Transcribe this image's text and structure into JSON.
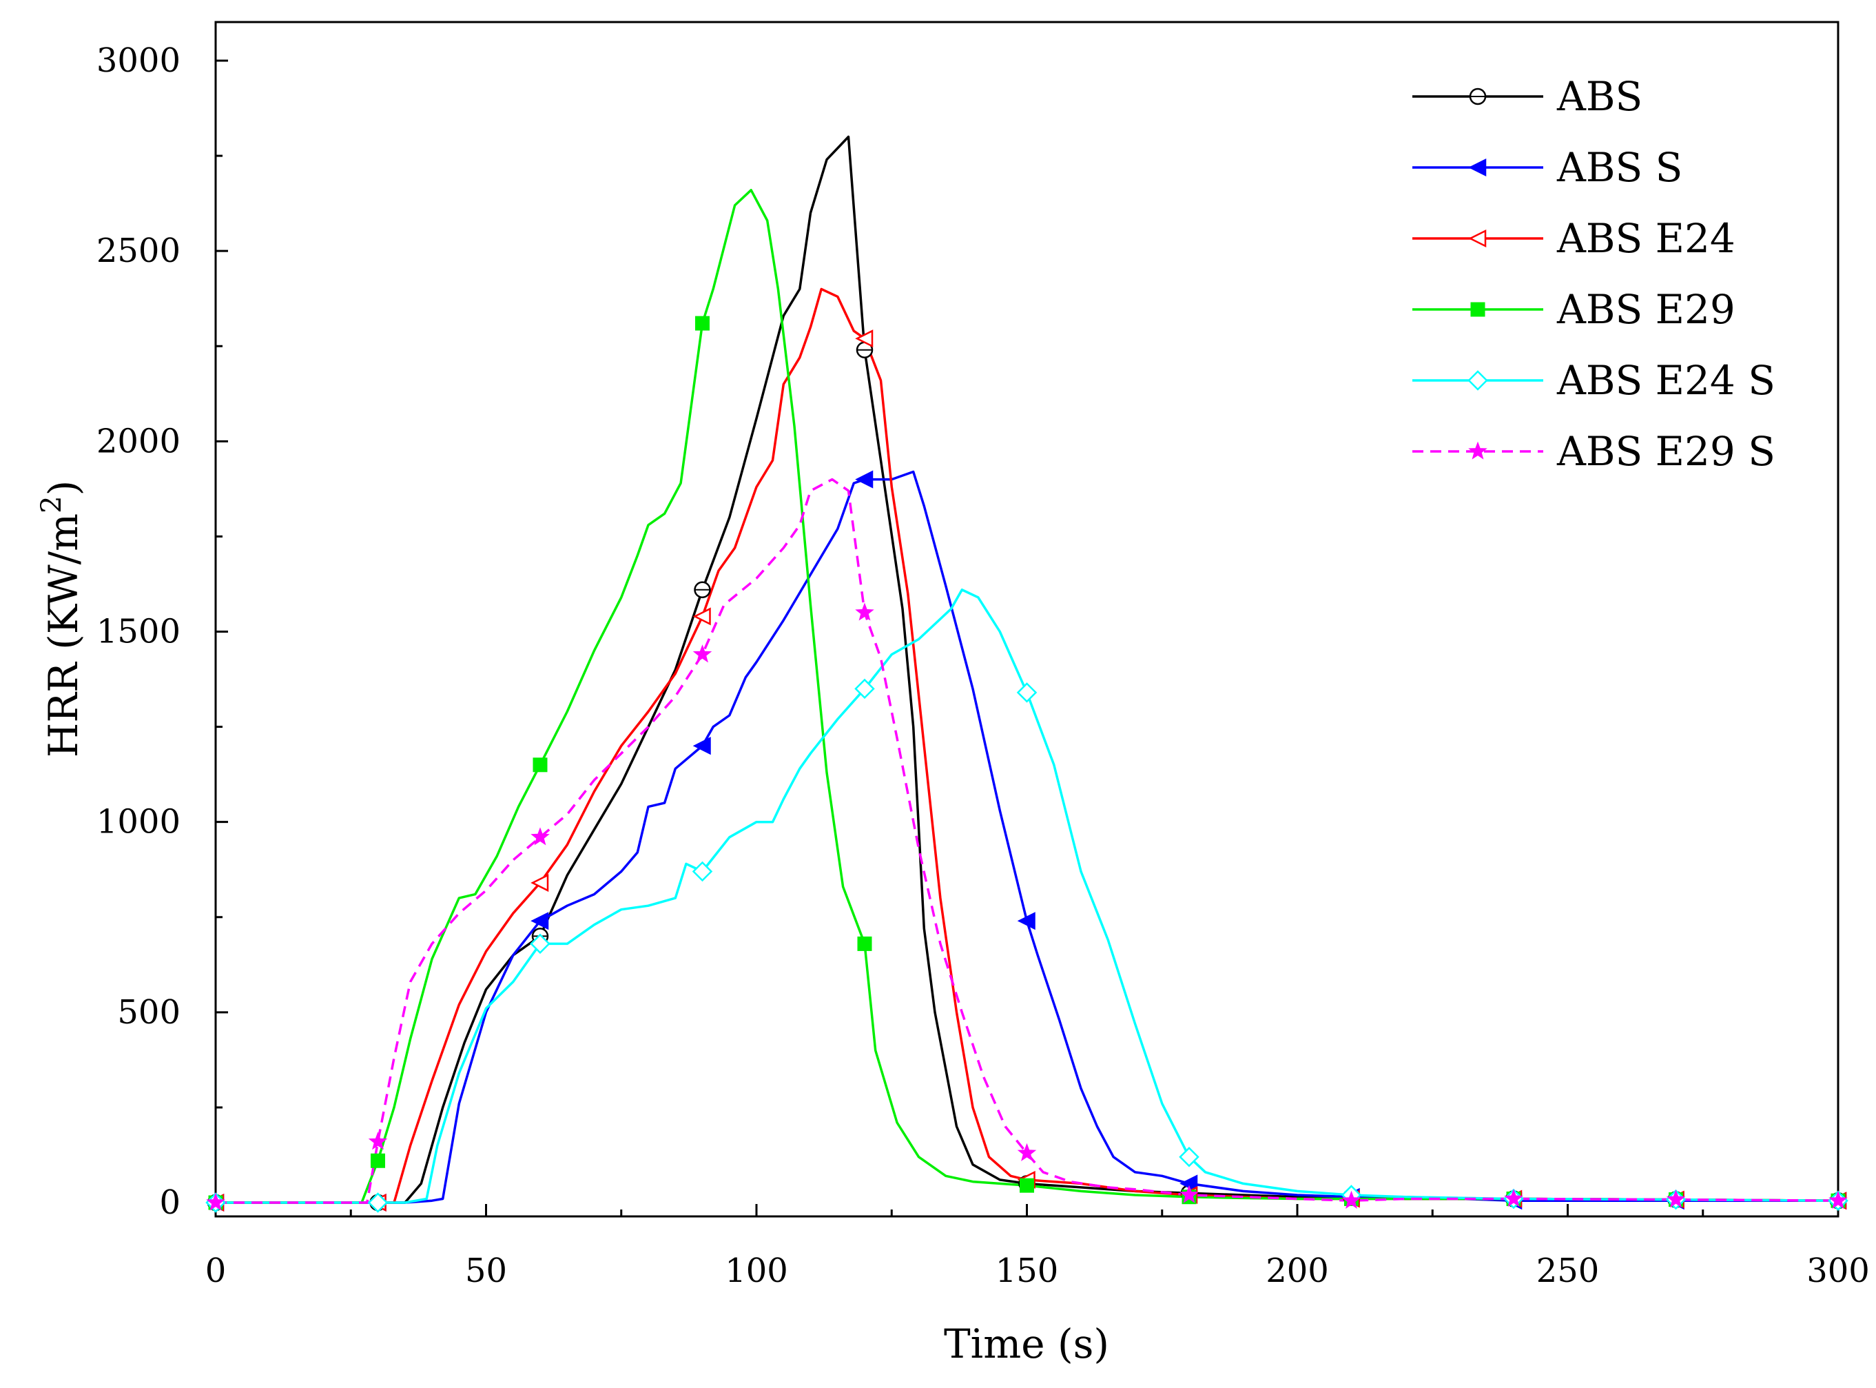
{
  "chart_data": {
    "type": "line",
    "xlabel": "Time (s)",
    "ylabel": "HRR (KW/m2)",
    "ylabel_base": "HRR (KW/m",
    "ylabel_sup": "2",
    "ylabel_close": ")",
    "xlim": [
      0,
      300
    ],
    "ylim": [
      0,
      3000
    ],
    "xticks": [
      0,
      50,
      100,
      150,
      200,
      250,
      300
    ],
    "yticks": [
      0,
      500,
      1000,
      1500,
      2000,
      2500,
      3000
    ],
    "x_tick_labels": [
      "0",
      "50",
      "100",
      "150",
      "200",
      "250",
      "300"
    ],
    "y_tick_labels": [
      "0",
      "500",
      "1000",
      "1500",
      "2000",
      "2500",
      "3000"
    ],
    "grid": false,
    "legend_position": "top-right",
    "series": [
      {
        "name": "ABS",
        "color": "#000000",
        "marker": "open-circle",
        "dash": false,
        "points": [
          [
            0,
            0
          ],
          [
            10,
            0
          ],
          [
            20,
            0
          ],
          [
            30,
            0
          ],
          [
            35,
            0
          ],
          [
            38,
            50
          ],
          [
            42,
            250
          ],
          [
            46,
            420
          ],
          [
            50,
            560
          ],
          [
            55,
            650
          ],
          [
            60,
            700
          ],
          [
            65,
            860
          ],
          [
            70,
            980
          ],
          [
            75,
            1100
          ],
          [
            80,
            1250
          ],
          [
            85,
            1400
          ],
          [
            90,
            1610
          ],
          [
            95,
            1800
          ],
          [
            100,
            2060
          ],
          [
            105,
            2330
          ],
          [
            108,
            2400
          ],
          [
            110,
            2600
          ],
          [
            113,
            2740
          ],
          [
            117,
            2800
          ],
          [
            120,
            2240
          ],
          [
            123,
            1950
          ],
          [
            127,
            1560
          ],
          [
            129,
            1250
          ],
          [
            131,
            720
          ],
          [
            133,
            500
          ],
          [
            135,
            350
          ],
          [
            137,
            200
          ],
          [
            140,
            100
          ],
          [
            145,
            60
          ],
          [
            150,
            50
          ],
          [
            160,
            40
          ],
          [
            170,
            30
          ],
          [
            180,
            25
          ],
          [
            190,
            20
          ],
          [
            200,
            15
          ],
          [
            210,
            15
          ],
          [
            220,
            10
          ],
          [
            240,
            10
          ],
          [
            270,
            8
          ],
          [
            300,
            5
          ]
        ],
        "markers_x": [
          0,
          30,
          60,
          90,
          120,
          150,
          180,
          210,
          240,
          270,
          300
        ]
      },
      {
        "name": "ABS S",
        "color": "#0000ff",
        "marker": "filled-left-triangle",
        "dash": false,
        "points": [
          [
            0,
            0
          ],
          [
            10,
            0
          ],
          [
            20,
            0
          ],
          [
            30,
            0
          ],
          [
            35,
            0
          ],
          [
            40,
            5
          ],
          [
            42,
            10
          ],
          [
            45,
            260
          ],
          [
            50,
            500
          ],
          [
            55,
            650
          ],
          [
            60,
            740
          ],
          [
            65,
            780
          ],
          [
            70,
            810
          ],
          [
            75,
            870
          ],
          [
            78,
            920
          ],
          [
            80,
            1040
          ],
          [
            83,
            1050
          ],
          [
            85,
            1140
          ],
          [
            90,
            1200
          ],
          [
            92,
            1250
          ],
          [
            95,
            1280
          ],
          [
            98,
            1380
          ],
          [
            100,
            1420
          ],
          [
            105,
            1530
          ],
          [
            110,
            1650
          ],
          [
            115,
            1770
          ],
          [
            118,
            1890
          ],
          [
            120,
            1900
          ],
          [
            125,
            1900
          ],
          [
            129,
            1920
          ],
          [
            131,
            1830
          ],
          [
            135,
            1620
          ],
          [
            140,
            1350
          ],
          [
            145,
            1030
          ],
          [
            150,
            740
          ],
          [
            152,
            650
          ],
          [
            156,
            480
          ],
          [
            160,
            300
          ],
          [
            163,
            200
          ],
          [
            166,
            120
          ],
          [
            170,
            80
          ],
          [
            175,
            70
          ],
          [
            180,
            50
          ],
          [
            190,
            30
          ],
          [
            200,
            20
          ],
          [
            210,
            15
          ],
          [
            220,
            15
          ],
          [
            240,
            5
          ],
          [
            270,
            5
          ],
          [
            300,
            5
          ]
        ],
        "markers_x": [
          0,
          30,
          60,
          90,
          120,
          150,
          180,
          210,
          240,
          270,
          300
        ]
      },
      {
        "name": "ABS E24",
        "color": "#ff0000",
        "marker": "open-left-triangle",
        "dash": false,
        "points": [
          [
            0,
            0
          ],
          [
            10,
            0
          ],
          [
            20,
            0
          ],
          [
            30,
            0
          ],
          [
            33,
            0
          ],
          [
            36,
            150
          ],
          [
            40,
            320
          ],
          [
            45,
            520
          ],
          [
            50,
            660
          ],
          [
            55,
            760
          ],
          [
            60,
            840
          ],
          [
            65,
            940
          ],
          [
            70,
            1080
          ],
          [
            75,
            1200
          ],
          [
            80,
            1290
          ],
          [
            85,
            1390
          ],
          [
            90,
            1540
          ],
          [
            93,
            1660
          ],
          [
            96,
            1720
          ],
          [
            100,
            1880
          ],
          [
            103,
            1950
          ],
          [
            105,
            2150
          ],
          [
            108,
            2220
          ],
          [
            110,
            2300
          ],
          [
            112,
            2400
          ],
          [
            115,
            2380
          ],
          [
            118,
            2290
          ],
          [
            120,
            2270
          ],
          [
            123,
            2160
          ],
          [
            125,
            1880
          ],
          [
            128,
            1600
          ],
          [
            131,
            1200
          ],
          [
            134,
            800
          ],
          [
            137,
            500
          ],
          [
            140,
            250
          ],
          [
            143,
            120
          ],
          [
            147,
            70
          ],
          [
            150,
            60
          ],
          [
            160,
            50
          ],
          [
            170,
            30
          ],
          [
            180,
            20
          ],
          [
            190,
            15
          ],
          [
            200,
            10
          ],
          [
            210,
            10
          ],
          [
            220,
            10
          ],
          [
            240,
            10
          ],
          [
            270,
            8
          ],
          [
            300,
            5
          ]
        ],
        "markers_x": [
          0,
          30,
          60,
          90,
          120,
          150,
          180,
          210,
          240,
          270,
          300
        ]
      },
      {
        "name": "ABS E29",
        "color": "#00ee00",
        "marker": "filled-square",
        "dash": false,
        "points": [
          [
            0,
            0
          ],
          [
            10,
            0
          ],
          [
            20,
            0
          ],
          [
            27,
            0
          ],
          [
            30,
            110
          ],
          [
            33,
            250
          ],
          [
            36,
            430
          ],
          [
            40,
            640
          ],
          [
            45,
            800
          ],
          [
            48,
            810
          ],
          [
            52,
            910
          ],
          [
            56,
            1040
          ],
          [
            60,
            1150
          ],
          [
            65,
            1290
          ],
          [
            70,
            1450
          ],
          [
            75,
            1590
          ],
          [
            78,
            1700
          ],
          [
            80,
            1780
          ],
          [
            83,
            1810
          ],
          [
            86,
            1890
          ],
          [
            90,
            2310
          ],
          [
            92,
            2400
          ],
          [
            96,
            2620
          ],
          [
            99,
            2660
          ],
          [
            102,
            2580
          ],
          [
            104,
            2400
          ],
          [
            107,
            2040
          ],
          [
            110,
            1570
          ],
          [
            113,
            1130
          ],
          [
            116,
            830
          ],
          [
            120,
            680
          ],
          [
            122,
            400
          ],
          [
            126,
            210
          ],
          [
            130,
            120
          ],
          [
            135,
            70
          ],
          [
            140,
            55
          ],
          [
            145,
            50
          ],
          [
            150,
            45
          ],
          [
            160,
            30
          ],
          [
            170,
            20
          ],
          [
            180,
            15
          ],
          [
            190,
            12
          ],
          [
            200,
            10
          ],
          [
            210,
            10
          ],
          [
            220,
            10
          ],
          [
            240,
            10
          ],
          [
            270,
            8
          ],
          [
            300,
            5
          ]
        ],
        "markers_x": [
          0,
          30,
          60,
          90,
          120,
          150,
          180,
          210,
          240,
          270,
          300
        ]
      },
      {
        "name": "ABS E24 S",
        "color": "#00ffff",
        "marker": "open-diamond",
        "dash": false,
        "points": [
          [
            0,
            0
          ],
          [
            10,
            0
          ],
          [
            20,
            0
          ],
          [
            30,
            0
          ],
          [
            35,
            0
          ],
          [
            39,
            10
          ],
          [
            41,
            150
          ],
          [
            45,
            340
          ],
          [
            50,
            510
          ],
          [
            55,
            580
          ],
          [
            60,
            680
          ],
          [
            65,
            680
          ],
          [
            70,
            730
          ],
          [
            75,
            770
          ],
          [
            80,
            780
          ],
          [
            85,
            800
          ],
          [
            87,
            890
          ],
          [
            90,
            870
          ],
          [
            95,
            960
          ],
          [
            100,
            1000
          ],
          [
            103,
            1000
          ],
          [
            105,
            1060
          ],
          [
            108,
            1140
          ],
          [
            110,
            1180
          ],
          [
            115,
            1270
          ],
          [
            120,
            1350
          ],
          [
            125,
            1440
          ],
          [
            130,
            1480
          ],
          [
            133,
            1520
          ],
          [
            136,
            1560
          ],
          [
            138,
            1610
          ],
          [
            141,
            1590
          ],
          [
            145,
            1500
          ],
          [
            150,
            1340
          ],
          [
            155,
            1150
          ],
          [
            160,
            870
          ],
          [
            165,
            690
          ],
          [
            170,
            470
          ],
          [
            175,
            260
          ],
          [
            180,
            120
          ],
          [
            183,
            80
          ],
          [
            190,
            50
          ],
          [
            200,
            30
          ],
          [
            210,
            20
          ],
          [
            220,
            15
          ],
          [
            240,
            10
          ],
          [
            270,
            8
          ],
          [
            300,
            5
          ]
        ],
        "markers_x": [
          0,
          30,
          60,
          90,
          120,
          150,
          180,
          210,
          240,
          270,
          300
        ]
      },
      {
        "name": "ABS E29 S",
        "color": "#ff00ff",
        "marker": "filled-star",
        "dash": true,
        "points": [
          [
            0,
            0
          ],
          [
            10,
            0
          ],
          [
            20,
            0
          ],
          [
            28,
            0
          ],
          [
            30,
            160
          ],
          [
            33,
            380
          ],
          [
            36,
            580
          ],
          [
            40,
            680
          ],
          [
            45,
            760
          ],
          [
            50,
            820
          ],
          [
            55,
            900
          ],
          [
            60,
            960
          ],
          [
            65,
            1020
          ],
          [
            70,
            1110
          ],
          [
            75,
            1180
          ],
          [
            80,
            1250
          ],
          [
            85,
            1330
          ],
          [
            90,
            1440
          ],
          [
            94,
            1570
          ],
          [
            100,
            1640
          ],
          [
            105,
            1720
          ],
          [
            108,
            1780
          ],
          [
            110,
            1870
          ],
          [
            114,
            1900
          ],
          [
            117,
            1870
          ],
          [
            120,
            1550
          ],
          [
            123,
            1430
          ],
          [
            126,
            1220
          ],
          [
            130,
            930
          ],
          [
            134,
            680
          ],
          [
            138,
            500
          ],
          [
            142,
            330
          ],
          [
            146,
            200
          ],
          [
            150,
            130
          ],
          [
            153,
            80
          ],
          [
            158,
            55
          ],
          [
            165,
            40
          ],
          [
            170,
            35
          ],
          [
            180,
            20
          ],
          [
            190,
            15
          ],
          [
            200,
            10
          ],
          [
            210,
            5
          ],
          [
            220,
            10
          ],
          [
            240,
            10
          ],
          [
            270,
            8
          ],
          [
            300,
            5
          ]
        ],
        "markers_x": [
          0,
          30,
          60,
          90,
          120,
          150,
          180,
          210,
          240,
          270,
          300
        ]
      }
    ]
  }
}
